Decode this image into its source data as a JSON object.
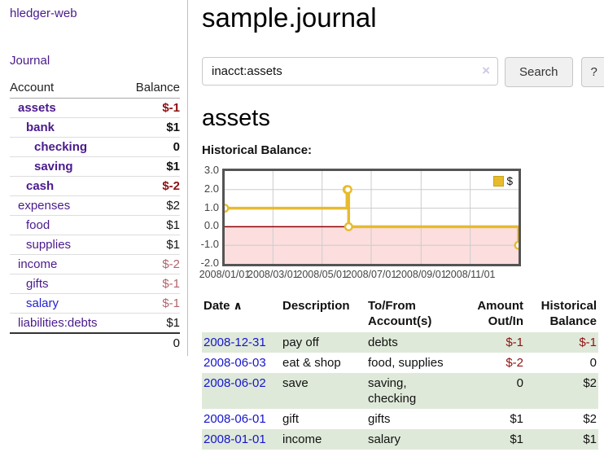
{
  "sidebar": {
    "title": "hledger-web",
    "journal_label": "Journal",
    "accounts": {
      "header_account": "Account",
      "header_balance": "Balance",
      "rows": [
        {
          "name": "assets",
          "indent": 1,
          "bold": true,
          "balance": "$-1",
          "balance_class": "neg-strong",
          "link_class": ""
        },
        {
          "name": "bank",
          "indent": 2,
          "bold": true,
          "balance": "$1",
          "balance_class": "",
          "link_class": ""
        },
        {
          "name": "checking",
          "indent": 3,
          "bold": true,
          "balance": "0",
          "balance_class": "",
          "link_class": ""
        },
        {
          "name": "saving",
          "indent": 3,
          "bold": true,
          "balance": "$1",
          "balance_class": "",
          "link_class": ""
        },
        {
          "name": "cash",
          "indent": 2,
          "bold": true,
          "balance": "$-2",
          "balance_class": "neg-strong",
          "link_class": ""
        },
        {
          "name": "expenses",
          "indent": 1,
          "bold": false,
          "balance": "$2",
          "balance_class": "",
          "link_class": ""
        },
        {
          "name": "food",
          "indent": 2,
          "bold": false,
          "balance": "$1",
          "balance_class": "",
          "link_class": ""
        },
        {
          "name": "supplies",
          "indent": 2,
          "bold": false,
          "balance": "$1",
          "balance_class": "",
          "link_class": ""
        },
        {
          "name": "income",
          "indent": 1,
          "bold": false,
          "balance": "$-2",
          "balance_class": "neg-soft",
          "link_class": ""
        },
        {
          "name": "gifts",
          "indent": 2,
          "bold": false,
          "balance": "$-1",
          "balance_class": "neg-soft",
          "link_class": ""
        },
        {
          "name": "salary",
          "indent": 2,
          "bold": false,
          "balance": "$-1",
          "balance_class": "neg-soft",
          "link_class": "blue"
        },
        {
          "name": "liabilities:debts",
          "indent": 1,
          "bold": false,
          "balance": "$1",
          "balance_class": "",
          "link_class": ""
        }
      ],
      "total": "0"
    }
  },
  "main": {
    "title": "sample.journal",
    "search": {
      "value": "inacct:assets",
      "clear_icon": "×",
      "button_label": "Search",
      "help_label": "?"
    },
    "account_heading": "assets",
    "chart_title": "Historical Balance:",
    "register": {
      "headers": [
        "Date",
        "Description",
        "To/From Account(s)",
        "Amount Out/In",
        "Historical Balance"
      ],
      "sort_icon": "∧",
      "rows": [
        {
          "date": "2008-12-31",
          "description": "pay off",
          "accounts": "debts",
          "amount": "$-1",
          "amount_class": "neg-strong",
          "balance": "$-1",
          "balance_class": "neg-strong",
          "shaded": true
        },
        {
          "date": "2008-06-03",
          "description": "eat & shop",
          "accounts": "food, supplies",
          "amount": "$-2",
          "amount_class": "neg-strong",
          "balance": "0",
          "balance_class": "",
          "shaded": false
        },
        {
          "date": "2008-06-02",
          "description": "save",
          "accounts": "saving, checking",
          "amount": "0",
          "amount_class": "",
          "balance": "$2",
          "balance_class": "",
          "shaded": true
        },
        {
          "date": "2008-06-01",
          "description": "gift",
          "accounts": "gifts",
          "amount": "$1",
          "amount_class": "",
          "balance": "$2",
          "balance_class": "",
          "shaded": false
        },
        {
          "date": "2008-01-01",
          "description": "income",
          "accounts": "salary",
          "amount": "$1",
          "amount_class": "",
          "balance": "$1",
          "balance_class": "",
          "shaded": true
        }
      ]
    }
  },
  "chart_data": {
    "type": "line",
    "step": true,
    "title": "Historical Balance:",
    "series": [
      {
        "name": "$",
        "points": [
          [
            "2008-01-01",
            1
          ],
          [
            "2008-06-01",
            2
          ],
          [
            "2008-06-02",
            2
          ],
          [
            "2008-06-03",
            0
          ],
          [
            "2008-12-31",
            -1
          ]
        ]
      }
    ],
    "x_ticks": [
      {
        "date": "2008-01-01",
        "label": "2008/01/01"
      },
      {
        "date": "2008-03-01",
        "label": "2008/03/01"
      },
      {
        "date": "2008-05-01",
        "label": "2008/05/01"
      },
      {
        "date": "2008-07-01",
        "label": "2008/07/01"
      },
      {
        "date": "2008-09-01",
        "label": "2008/09/01"
      },
      {
        "date": "2008-11-01",
        "label": "2008/11/01"
      }
    ],
    "y_ticks": [
      "3.0",
      "2.0",
      "1.0",
      "0.0",
      "-1.0",
      "-2.0"
    ],
    "xlim": [
      "2008-01-01",
      "2008-12-31"
    ],
    "ylim": [
      -2,
      3
    ],
    "legend": {
      "label": "$"
    },
    "colors": {
      "line": "#e8bb2d",
      "marker_fill": "#ffffff",
      "negative_region": "#fcdede",
      "zero_line": "#8b0000",
      "grid": "#cccccc",
      "border": "#545454"
    }
  }
}
